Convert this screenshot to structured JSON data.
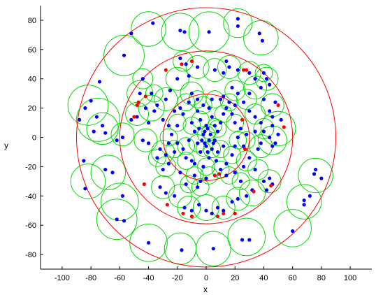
{
  "chart_data": {
    "type": "scatter",
    "xlabel": "x",
    "ylabel": "y",
    "xlim": [
      -115,
      115
    ],
    "ylim": [
      -90,
      90
    ],
    "xticks": [
      -100,
      -80,
      -60,
      -40,
      -20,
      0,
      20,
      40,
      60,
      80,
      100
    ],
    "yticks": [
      -80,
      -60,
      -40,
      -20,
      0,
      20,
      40,
      60,
      80
    ],
    "grid": false,
    "colors": {
      "blue_points": "#0000ff",
      "red_points": "#ff0000",
      "range_circles": "#ff0000",
      "coverage_circles": "#00dd00",
      "axes": "#000000"
    },
    "range_circles": [
      {
        "cx": 0,
        "cy": 0,
        "r": 30
      },
      {
        "cx": 0,
        "cy": 0,
        "r": 60
      },
      {
        "cx": 0,
        "cy": 0,
        "r": 90
      }
    ],
    "blue_points": [
      [
        -57,
        56
      ],
      [
        -18,
        73
      ],
      [
        -15,
        72
      ],
      [
        2,
        72
      ],
      [
        -37,
        78
      ],
      [
        -52,
        71
      ],
      [
        22,
        81
      ],
      [
        22,
        76
      ],
      [
        37,
        71
      ],
      [
        39,
        66
      ],
      [
        -74,
        38
      ],
      [
        -80,
        25
      ],
      [
        -84,
        20
      ],
      [
        -88,
        12
      ],
      [
        -76,
        14
      ],
      [
        -72,
        8
      ],
      [
        -78,
        4
      ],
      [
        -70,
        3
      ],
      [
        -85,
        -16
      ],
      [
        -70,
        -22
      ],
      [
        -65,
        -24
      ],
      [
        -58,
        -40
      ],
      [
        -62,
        -56
      ],
      [
        -57,
        -57
      ],
      [
        -84,
        -35
      ],
      [
        -40,
        -72
      ],
      [
        -17,
        -77
      ],
      [
        5,
        -76
      ],
      [
        25,
        -70
      ],
      [
        30,
        -70
      ],
      [
        60,
        -64
      ],
      [
        68,
        -46
      ],
      [
        68,
        -43
      ],
      [
        72,
        -40
      ],
      [
        75,
        -25
      ],
      [
        80,
        -28
      ],
      [
        76,
        -22
      ],
      [
        52,
        12
      ],
      [
        46,
        8
      ],
      [
        50,
        2
      ],
      [
        44,
        0
      ],
      [
        48,
        -4
      ],
      [
        46,
        -6
      ],
      [
        -20,
        40
      ],
      [
        -12,
        42
      ],
      [
        -10,
        30
      ],
      [
        -25,
        32
      ],
      [
        -28,
        26
      ],
      [
        -34,
        22
      ],
      [
        -36,
        18
      ],
      [
        -42,
        20
      ],
      [
        -46,
        30
      ],
      [
        -18,
        20
      ],
      [
        -22,
        18
      ],
      [
        -30,
        12
      ],
      [
        -26,
        8
      ],
      [
        -40,
        10
      ],
      [
        -48,
        14
      ],
      [
        -52,
        12
      ],
      [
        -58,
        0
      ],
      [
        -62,
        -2
      ],
      [
        -44,
        -2
      ],
      [
        -40,
        -4
      ],
      [
        -32,
        -8
      ],
      [
        -28,
        -12
      ],
      [
        -26,
        -18
      ],
      [
        -30,
        -22
      ],
      [
        -32,
        -34
      ],
      [
        -28,
        -38
      ],
      [
        -22,
        -40
      ],
      [
        -15,
        -48
      ],
      [
        -10,
        -50
      ],
      [
        -5,
        -46
      ],
      [
        0,
        -50
      ],
      [
        4,
        -52
      ],
      [
        8,
        -48
      ],
      [
        12,
        -50
      ],
      [
        18,
        -44
      ],
      [
        22,
        -42
      ],
      [
        28,
        -40
      ],
      [
        32,
        -36
      ],
      [
        42,
        -36
      ],
      [
        44,
        -28
      ],
      [
        46,
        -32
      ],
      [
        40,
        -30
      ],
      [
        34,
        -22
      ],
      [
        26,
        -20
      ],
      [
        30,
        -14
      ],
      [
        36,
        -8
      ],
      [
        38,
        -4
      ],
      [
        40,
        4
      ],
      [
        38,
        10
      ],
      [
        34,
        14
      ],
      [
        30,
        18
      ],
      [
        26,
        24
      ],
      [
        30,
        30
      ],
      [
        38,
        34
      ],
      [
        42,
        40
      ],
      [
        44,
        36
      ],
      [
        48,
        24
      ],
      [
        44,
        18
      ],
      [
        40,
        26
      ],
      [
        34,
        40
      ],
      [
        30,
        44
      ],
      [
        22,
        46
      ],
      [
        16,
        48
      ],
      [
        12,
        44
      ],
      [
        6,
        46
      ],
      [
        -6,
        48
      ],
      [
        -14,
        50
      ],
      [
        -18,
        54
      ],
      [
        14,
        52
      ],
      [
        18,
        34
      ],
      [
        22,
        30
      ],
      [
        12,
        28
      ],
      [
        -10,
        10
      ],
      [
        -8,
        4
      ],
      [
        -12,
        -2
      ],
      [
        -16,
        -8
      ],
      [
        -14,
        -14
      ],
      [
        -18,
        -24
      ],
      [
        -8,
        -26
      ],
      [
        -4,
        -30
      ],
      [
        -2,
        -20
      ],
      [
        2,
        -14
      ],
      [
        4,
        -8
      ],
      [
        6,
        -2
      ],
      [
        8,
        4
      ],
      [
        10,
        10
      ],
      [
        12,
        16
      ],
      [
        14,
        20
      ],
      [
        18,
        16
      ],
      [
        20,
        10
      ],
      [
        24,
        6
      ],
      [
        22,
        0
      ],
      [
        20,
        -6
      ],
      [
        18,
        -12
      ],
      [
        14,
        -18
      ],
      [
        10,
        -22
      ],
      [
        6,
        -26
      ],
      [
        0,
        -28
      ],
      [
        -2,
        22
      ],
      [
        2,
        20
      ],
      [
        -6,
        18
      ],
      [
        -4,
        12
      ],
      [
        0,
        8
      ],
      [
        4,
        14
      ],
      [
        -2,
        2
      ],
      [
        2,
        -2
      ],
      [
        0,
        -6
      ],
      [
        -4,
        -10
      ],
      [
        -6,
        -4
      ],
      [
        -10,
        -16
      ],
      [
        6,
        8
      ],
      [
        8,
        -10
      ],
      [
        12,
        -6
      ],
      [
        -12,
        24
      ],
      [
        -16,
        16
      ],
      [
        -20,
        8
      ],
      [
        -20,
        -4
      ],
      [
        -22,
        -10
      ],
      [
        16,
        24
      ],
      [
        20,
        22
      ],
      [
        10,
        26
      ],
      [
        4,
        26
      ],
      [
        -6,
        26
      ],
      [
        14,
        -26
      ],
      [
        20,
        -24
      ],
      [
        24,
        -30
      ],
      [
        -14,
        -32
      ],
      [
        -6,
        -34
      ],
      [
        -1,
        4
      ],
      [
        1,
        6
      ],
      [
        -3,
        -2
      ],
      [
        3,
        2
      ],
      [
        -1,
        -4
      ],
      [
        5,
        -4
      ],
      [
        -5,
        6
      ],
      [
        1,
        -10
      ],
      [
        -8,
        -18
      ],
      [
        7,
        -16
      ],
      [
        -24,
        2
      ],
      [
        -26,
        -4
      ],
      [
        26,
        -6
      ],
      [
        28,
        2
      ],
      [
        -34,
        -14
      ],
      [
        34,
        4
      ],
      [
        -38,
        30
      ],
      [
        -44,
        40
      ],
      [
        40,
        44
      ],
      [
        46,
        14
      ]
    ],
    "red_points": [
      [
        -28,
        46
      ],
      [
        -17,
        50
      ],
      [
        -10,
        52
      ],
      [
        -47,
        24
      ],
      [
        -48,
        22
      ],
      [
        -42,
        28
      ],
      [
        -50,
        14
      ],
      [
        25,
        12
      ],
      [
        27,
        -8
      ],
      [
        26,
        46
      ],
      [
        28,
        46
      ],
      [
        50,
        22
      ],
      [
        54,
        7
      ],
      [
        9,
        -25
      ],
      [
        6,
        -26
      ],
      [
        -43,
        -32
      ],
      [
        -27,
        -46
      ],
      [
        -16,
        -52
      ],
      [
        -10,
        -54
      ],
      [
        8,
        -54
      ],
      [
        20,
        -52
      ],
      [
        45,
        -33
      ],
      [
        33,
        -37
      ],
      [
        12,
        -52
      ]
    ],
    "coverage_circles": [
      [
        -57,
        56,
        14
      ],
      [
        -40,
        74,
        12
      ],
      [
        -18,
        72,
        13
      ],
      [
        2,
        72,
        14
      ],
      [
        22,
        78,
        10
      ],
      [
        38,
        68,
        12
      ],
      [
        -82,
        22,
        14
      ],
      [
        -75,
        12,
        15
      ],
      [
        -72,
        6,
        11
      ],
      [
        -82,
        -30,
        12
      ],
      [
        -68,
        -24,
        12
      ],
      [
        -60,
        -44,
        13
      ],
      [
        -62,
        -56,
        14
      ],
      [
        -40,
        -72,
        13
      ],
      [
        -18,
        -76,
        11
      ],
      [
        5,
        -76,
        12
      ],
      [
        28,
        -68,
        13
      ],
      [
        60,
        -62,
        13
      ],
      [
        68,
        -44,
        12
      ],
      [
        76,
        -26,
        12
      ],
      [
        50,
        6,
        12
      ],
      [
        46,
        -2,
        10
      ],
      [
        -20,
        40,
        8
      ],
      [
        -10,
        30,
        8
      ],
      [
        -28,
        26,
        8
      ],
      [
        -38,
        20,
        9
      ],
      [
        -46,
        30,
        9
      ],
      [
        -48,
        16,
        8
      ],
      [
        -58,
        2,
        8
      ],
      [
        -42,
        -2,
        8
      ],
      [
        -30,
        -10,
        8
      ],
      [
        -28,
        -20,
        7
      ],
      [
        -30,
        -34,
        8
      ],
      [
        -18,
        -40,
        8
      ],
      [
        -12,
        -48,
        8
      ],
      [
        0,
        -48,
        9
      ],
      [
        12,
        -48,
        8
      ],
      [
        22,
        -42,
        8
      ],
      [
        32,
        -38,
        9
      ],
      [
        44,
        -30,
        8
      ],
      [
        36,
        -22,
        7
      ],
      [
        28,
        -16,
        7
      ],
      [
        38,
        -6,
        8
      ],
      [
        40,
        6,
        7
      ],
      [
        34,
        16,
        7
      ],
      [
        28,
        26,
        7
      ],
      [
        34,
        34,
        8
      ],
      [
        42,
        40,
        8
      ],
      [
        46,
        22,
        8
      ],
      [
        30,
        44,
        8
      ],
      [
        16,
        48,
        8
      ],
      [
        6,
        46,
        8
      ],
      [
        -6,
        48,
        8
      ],
      [
        -16,
        52,
        7
      ],
      [
        20,
        32,
        7
      ],
      [
        -10,
        8,
        6
      ],
      [
        -14,
        -6,
        6
      ],
      [
        -14,
        -16,
        6
      ],
      [
        -8,
        -26,
        6
      ],
      [
        0,
        -20,
        6
      ],
      [
        4,
        -8,
        6
      ],
      [
        8,
        6,
        6
      ],
      [
        12,
        16,
        6
      ],
      [
        20,
        10,
        6
      ],
      [
        22,
        -2,
        6
      ],
      [
        18,
        -12,
        6
      ],
      [
        10,
        -22,
        6
      ],
      [
        2,
        -26,
        6
      ],
      [
        -2,
        22,
        6
      ],
      [
        -4,
        12,
        6
      ],
      [
        0,
        2,
        6
      ],
      [
        -6,
        -4,
        6
      ],
      [
        6,
        8,
        5
      ],
      [
        10,
        -8,
        6
      ],
      [
        -14,
        24,
        6
      ],
      [
        -20,
        10,
        6
      ],
      [
        -22,
        -8,
        6
      ],
      [
        16,
        24,
        6
      ],
      [
        6,
        26,
        6
      ],
      [
        -6,
        26,
        6
      ],
      [
        16,
        -26,
        6
      ],
      [
        24,
        -30,
        6
      ],
      [
        -12,
        -32,
        6
      ],
      [
        -4,
        -34,
        6
      ],
      [
        2,
        4,
        5
      ],
      [
        -2,
        -8,
        5
      ],
      [
        -26,
        0,
        6
      ],
      [
        28,
        -2,
        6
      ],
      [
        -34,
        -14,
        6
      ],
      [
        -44,
        40,
        7
      ],
      [
        40,
        44,
        6
      ],
      [
        -36,
        30,
        6
      ]
    ]
  }
}
